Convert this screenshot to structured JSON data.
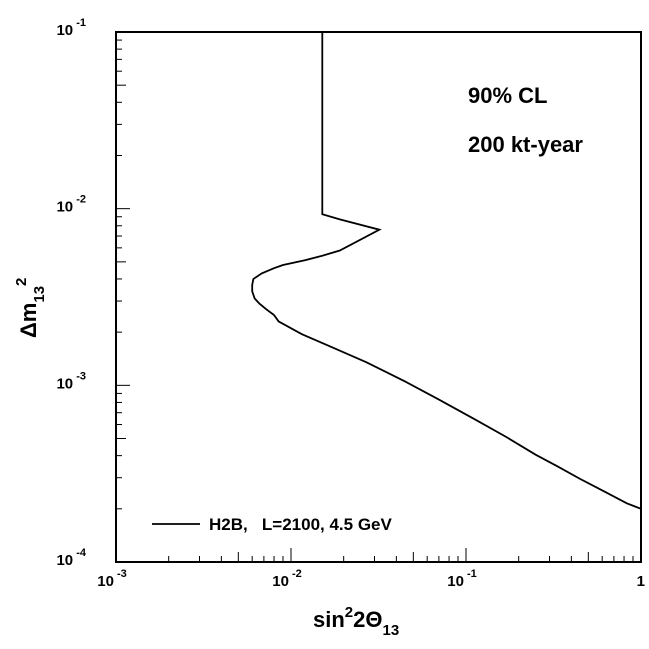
{
  "chart_data": {
    "type": "line",
    "x_scale": "log",
    "y_scale": "log",
    "xlim": [
      0.001,
      1
    ],
    "ylim": [
      0.0001,
      0.1
    ],
    "x_ticks": [
      {
        "value": 0.001,
        "base": "10",
        "exp": "-3"
      },
      {
        "value": 0.01,
        "base": "10",
        "exp": "-2"
      },
      {
        "value": 0.1,
        "base": "10",
        "exp": "-1"
      },
      {
        "value": 1,
        "base": "1",
        "exp": ""
      }
    ],
    "y_ticks": [
      {
        "value": 0.0001,
        "base": "10",
        "exp": "-4"
      },
      {
        "value": 0.001,
        "base": "10",
        "exp": "-3"
      },
      {
        "value": 0.01,
        "base": "10",
        "exp": "-2"
      },
      {
        "value": 0.1,
        "base": "10",
        "exp": "-1"
      }
    ],
    "xlabel": {
      "main": "sin",
      "sup": "2",
      "mid": "2Θ",
      "sub": "13"
    },
    "ylabel": {
      "main": "Δm",
      "sub": "13",
      "sup": "2"
    },
    "annotations": [
      "90% CL",
      "200 kt-year"
    ],
    "grid": false,
    "legend_position": "bottom-left",
    "series": [
      {
        "name": "H2B,   L=2100, 4.5 GeV",
        "color": "#000000",
        "x": [
          0.0151,
          0.0151,
          0.019,
          0.032,
          0.019,
          0.015,
          0.012,
          0.009,
          0.008,
          0.0068,
          0.0061,
          0.006,
          0.006,
          0.0062,
          0.0066,
          0.0072,
          0.008,
          0.0085,
          0.0115,
          0.017,
          0.027,
          0.045,
          0.07,
          0.11,
          0.17,
          0.25,
          0.33,
          0.45,
          0.62,
          0.83,
          1.0
        ],
        "y": [
          0.1,
          0.0093,
          0.0087,
          0.0076,
          0.0058,
          0.0054,
          0.0051,
          0.0048,
          0.0046,
          0.0043,
          0.004,
          0.0037,
          0.0034,
          0.0031,
          0.0029,
          0.0027,
          0.0025,
          0.0023,
          0.00195,
          0.00165,
          0.00135,
          0.00105,
          0.00083,
          0.00065,
          0.00051,
          0.000405,
          0.00035,
          0.000295,
          0.00025,
          0.000215,
          0.0002
        ]
      }
    ]
  }
}
